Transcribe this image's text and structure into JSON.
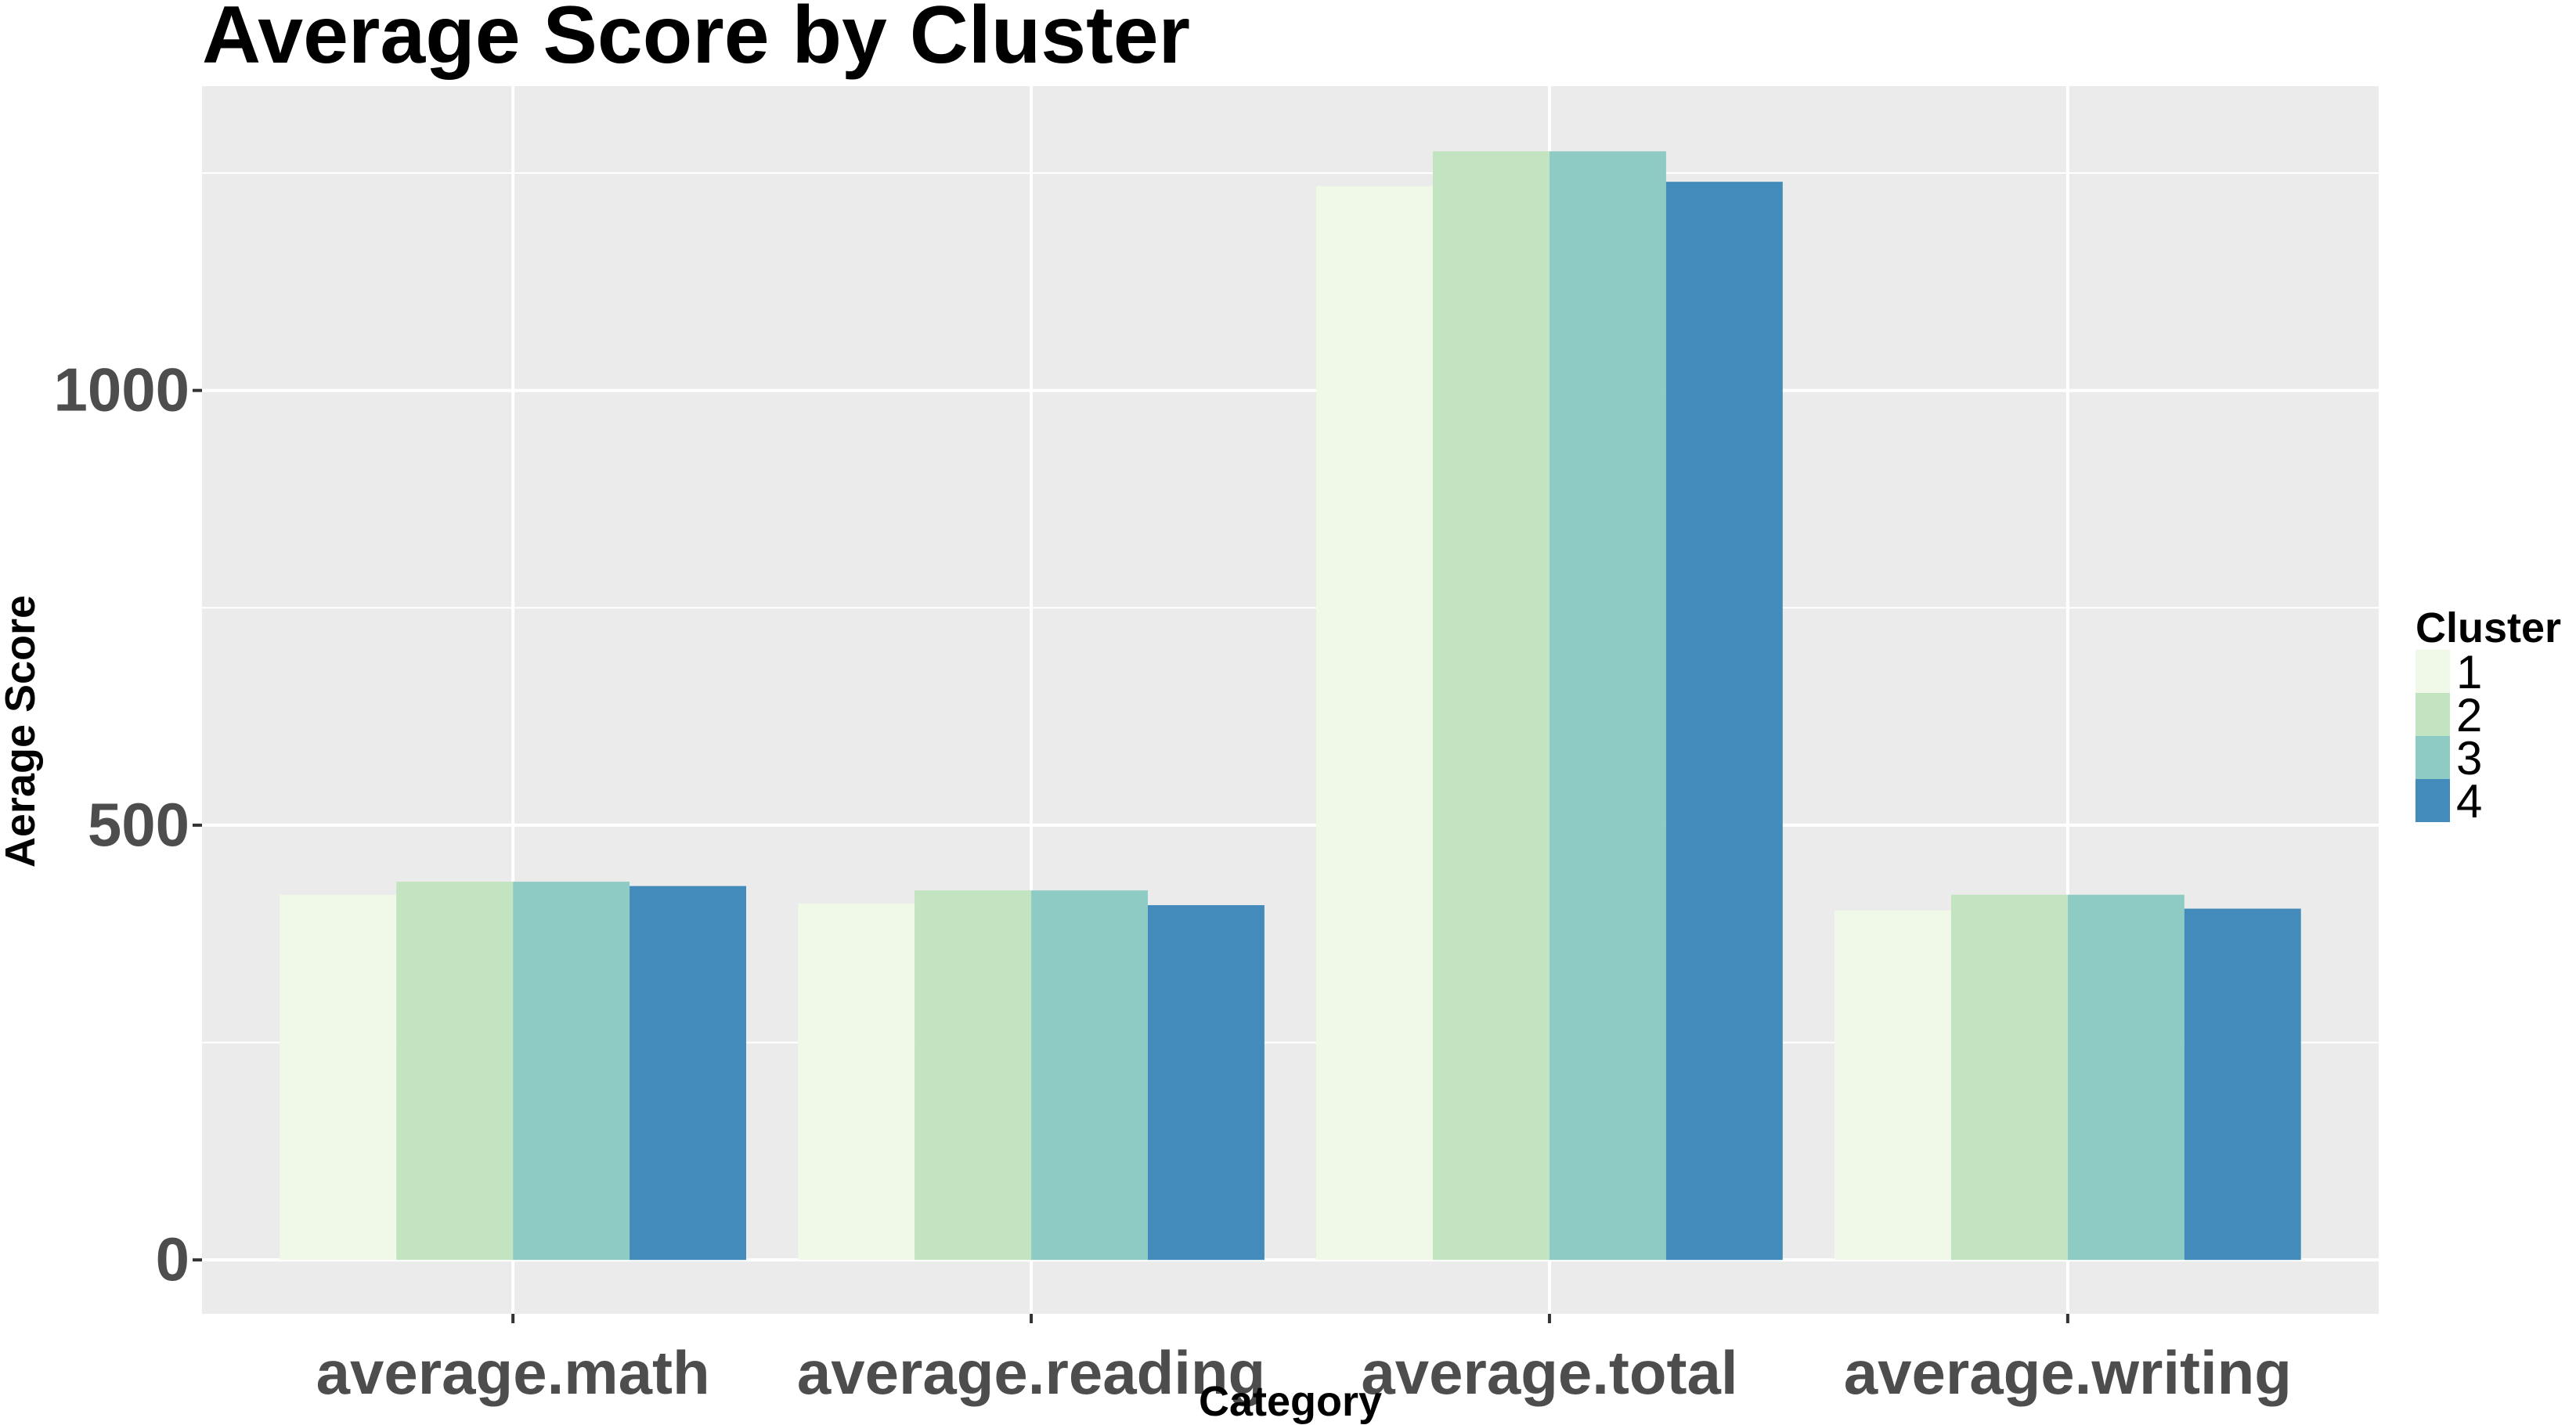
{
  "chart_data": {
    "type": "bar",
    "title": "Average Score by Cluster",
    "xlabel": "Category",
    "ylabel": "Aerage Score",
    "categories": [
      "average.math",
      "average.reading",
      "average.total",
      "average.writing"
    ],
    "y_ticks": [
      0,
      500,
      1000
    ],
    "ylim": [
      -62,
      1350
    ],
    "grid": true,
    "legend": {
      "title": "Cluster",
      "placement": "right"
    },
    "series": [
      {
        "name": "1",
        "color": "#f0f9e8",
        "values": [
          420,
          410,
          1235,
          402
        ]
      },
      {
        "name": "2",
        "color": "#c2e4c0",
        "values": [
          435,
          425,
          1275,
          420
        ]
      },
      {
        "name": "3",
        "color": "#8ecbc4",
        "values": [
          435,
          425,
          1275,
          420
        ]
      },
      {
        "name": "4",
        "color": "#438bbb",
        "values": [
          430,
          408,
          1240,
          404
        ]
      }
    ],
    "colors": {
      "panel_background": "#ebebeb",
      "grid": "#ffffff",
      "tick_text": "#4d4d4d",
      "tick_mark": "#333333"
    }
  }
}
